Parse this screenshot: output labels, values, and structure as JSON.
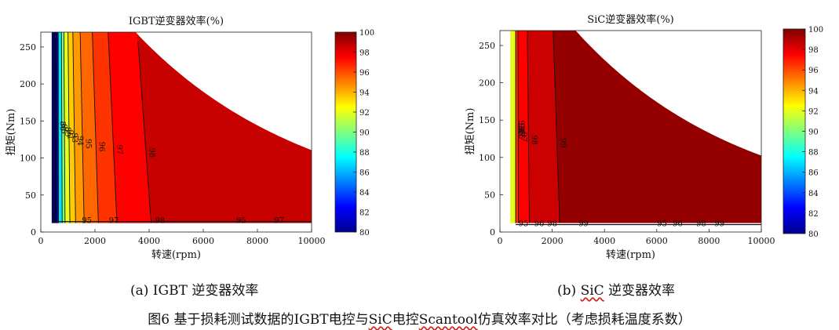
{
  "chart_data": [
    {
      "type": "heatmap",
      "subtype": "contour",
      "title": "IGBT逆变器效率(%)",
      "xlabel": "转速(rpm)",
      "ylabel": "扭矩(Nm)",
      "xlim": [
        0,
        10000
      ],
      "ylim": [
        0,
        270
      ],
      "xticks": [
        0,
        2000,
        4000,
        6000,
        8000,
        10000
      ],
      "yticks": [
        0,
        50,
        100,
        150,
        200,
        250
      ],
      "contours": [
        {
          "level": 80,
          "label": "80",
          "x_at_100Nm": 400
        },
        {
          "level": 85,
          "label": "85",
          "x_at_100Nm": 650
        },
        {
          "level": 89,
          "label": "89",
          "x_at_100Nm": 780
        },
        {
          "level": 91,
          "label": "91",
          "x_at_100Nm": 880
        },
        {
          "level": 93,
          "label": "93",
          "x_at_100Nm": 1050
        },
        {
          "level": 94,
          "label": "94",
          "x_at_100Nm": 1250
        },
        {
          "level": 95,
          "label": "95",
          "x_at_100Nm": 1550
        },
        {
          "level": 96,
          "label": "96",
          "x_at_100Nm": 2050
        },
        {
          "level": 97,
          "label": "97",
          "x_at_100Nm": 2700
        },
        {
          "level": 98,
          "label": "98",
          "x_at_100Nm": 3900
        }
      ],
      "bottom_labels": [
        "95",
        "97",
        "98",
        "95",
        "97"
      ],
      "colorbar": {
        "min": 80,
        "max": 100,
        "ticks": [
          80,
          82,
          84,
          86,
          88,
          90,
          92,
          94,
          96,
          98,
          100
        ]
      },
      "colormap": "jet"
    },
    {
      "type": "heatmap",
      "subtype": "contour",
      "title": "SiC逆变器效率(%)",
      "xlabel": "转速(rpm)",
      "ylabel": "扭矩(Nm)",
      "xlim": [
        0,
        10000
      ],
      "ylim": [
        0,
        270
      ],
      "xticks": [
        0,
        2000,
        4000,
        6000,
        8000,
        10000
      ],
      "yticks": [
        0,
        50,
        100,
        150,
        200,
        250
      ],
      "contours": [
        {
          "level": 93,
          "label": "93",
          "x_at_100Nm": 250
        },
        {
          "level": 94,
          "label": "94",
          "x_at_100Nm": 380
        },
        {
          "level": 95,
          "label": "95",
          "x_at_100Nm": 500
        },
        {
          "level": 96,
          "label": "96",
          "x_at_100Nm": 560
        },
        {
          "level": 97,
          "label": "97",
          "x_at_100Nm": 700
        },
        {
          "level": 98,
          "label": "98",
          "x_at_100Nm": 1100
        },
        {
          "level": 99,
          "label": "99",
          "x_at_100Nm": 2200
        }
      ],
      "bottom_labels": [
        "95",
        "96",
        "98",
        "99",
        "95",
        "96",
        "98",
        "99"
      ],
      "colorbar": {
        "min": 80,
        "max": 100,
        "ticks": [
          80,
          82,
          84,
          86,
          88,
          90,
          92,
          94,
          96,
          98,
          100
        ]
      },
      "colormap": "jet"
    }
  ],
  "captions": {
    "a": "(a) IGBT 逆变器效率",
    "b_prefix": "(b) ",
    "b_sic": "SiC",
    "b_suffix": " 逆变器效率",
    "figure_part1": "图6  基于损耗测试数据的IGBT电控与",
    "figure_sic": "SiC",
    "figure_part2": "电控",
    "figure_scantool": "Scantool",
    "figure_part3": "仿真效率对比（考虑损耗温度系数）"
  }
}
